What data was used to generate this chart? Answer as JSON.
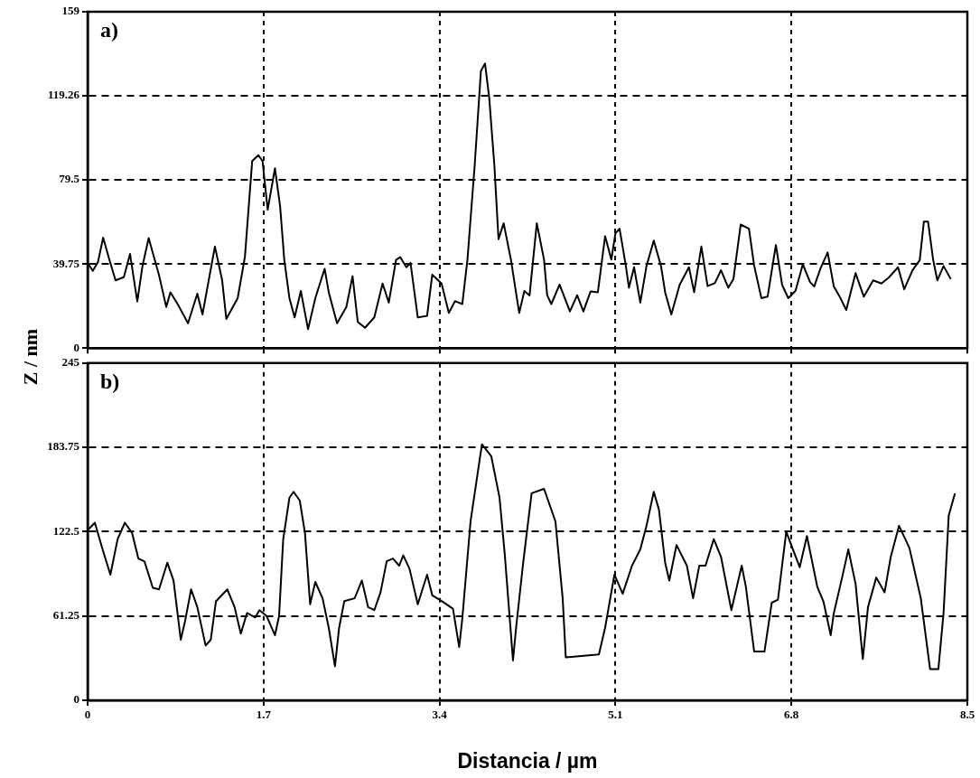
{
  "chart_data": [
    {
      "type": "line",
      "ylabel": "Z / nm",
      "annotations": [
        "a)"
      ],
      "xlim": [
        0,
        8.5
      ],
      "xticks": [
        0,
        1.7,
        3.4,
        5.1,
        6.8,
        8.5
      ],
      "ylim": [
        0,
        159
      ],
      "yticks": [
        0,
        39.75,
        79.5,
        119.26,
        159
      ],
      "grid": true,
      "tick_labels": "y",
      "marker": "none",
      "line_style": "solid",
      "series": [
        {
          "color": "#000000",
          "x": [
            0,
            0.05,
            0.1,
            0.15,
            0.21,
            0.27,
            0.35,
            0.41,
            0.48,
            0.53,
            0.59,
            0.69,
            0.76,
            0.8,
            0.87,
            0.97,
            1.06,
            1.11,
            1.18,
            1.23,
            1.3,
            1.34,
            1.45,
            1.52,
            1.59,
            1.65,
            1.69,
            1.74,
            1.81,
            1.86,
            1.9,
            1.95,
            2.0,
            2.06,
            2.13,
            2.2,
            2.29,
            2.33,
            2.41,
            2.5,
            2.56,
            2.61,
            2.68,
            2.77,
            2.85,
            2.91,
            2.98,
            3.02,
            3.08,
            3.12,
            3.19,
            3.28,
            3.33,
            3.42,
            3.49,
            3.55,
            3.62,
            3.67,
            3.74,
            3.8,
            3.84,
            3.88,
            3.93,
            3.97,
            4.02,
            4.09,
            4.17,
            4.22,
            4.27,
            4.34,
            4.41,
            4.44,
            4.48,
            4.56,
            4.66,
            4.73,
            4.79,
            4.86,
            4.93,
            5.0,
            5.06,
            5.1,
            5.14,
            5.2,
            5.23,
            5.28,
            5.34,
            5.4,
            5.47,
            5.54,
            5.58,
            5.64,
            5.72,
            5.81,
            5.86,
            5.93,
            5.99,
            6.06,
            6.12,
            6.19,
            6.24,
            6.31,
            6.39,
            6.44,
            6.51,
            6.57,
            6.65,
            6.71,
            6.77,
            6.84,
            6.91,
            6.98,
            7.02,
            7.08,
            7.15,
            7.21,
            7.26,
            7.33,
            7.42,
            7.5,
            7.59,
            7.67,
            7.74,
            7.83,
            7.89,
            7.97,
            8.04,
            8.08,
            8.12,
            8.17,
            8.21,
            8.27,
            8.34
          ],
          "values": [
            40.3,
            36.5,
            40.7,
            52.2,
            41.8,
            32,
            33.5,
            44.5,
            22,
            38.8,
            52,
            34.5,
            19.4,
            26.4,
            20.8,
            11.7,
            25.7,
            15.9,
            34.7,
            48,
            32,
            13.8,
            23.6,
            43.2,
            88.4,
            91.2,
            88.4,
            65.4,
            85,
            67,
            41.8,
            23.6,
            14.5,
            27,
            8.9,
            23.6,
            37.5,
            26.4,
            11.7,
            19.4,
            34,
            12.4,
            9.6,
            14.5,
            30.5,
            21.5,
            41.7,
            43,
            38.2,
            40.3,
            14.5,
            15.2,
            34.7,
            30.5,
            16.6,
            22.2,
            20.8,
            41.8,
            86.5,
            131,
            134.5,
            118.5,
            86.5,
            51.5,
            59,
            41.8,
            16.6,
            27,
            24.9,
            59,
            41.8,
            25,
            20.8,
            30,
            17.3,
            25,
            17.3,
            26.8,
            26.4,
            52.9,
            41.8,
            54.3,
            56.4,
            39,
            28.5,
            38.2,
            21.5,
            38.8,
            50.8,
            38.8,
            26.4,
            15.9,
            29.9,
            38.2,
            26.4,
            48,
            29.3,
            30.7,
            36.8,
            28.5,
            32.7,
            58.4,
            56.4,
            39,
            23.6,
            24.3,
            48.7,
            29.9,
            23.6,
            27.1,
            39.6,
            31.2,
            29.1,
            37.5,
            45.2,
            29.1,
            24.9,
            18,
            35.4,
            24.3,
            32,
            30.5,
            33.3,
            38.2,
            27.8,
            36.8,
            41.6,
            59.8,
            59.8,
            41.6,
            32,
            38.8,
            32.6
          ]
        }
      ]
    },
    {
      "type": "line",
      "xlabel": "Distancia / µm",
      "annotations": [
        "b)"
      ],
      "xlim": [
        0,
        8.5
      ],
      "xticks": [
        0,
        1.7,
        3.4,
        5.1,
        6.8,
        8.5
      ],
      "ylim": [
        0,
        245
      ],
      "yticks": [
        0,
        61.25,
        122.5,
        183.75,
        245
      ],
      "grid": true,
      "marker": "none",
      "line_style": "solid",
      "series": [
        {
          "color": "#000000",
          "x": [
            0,
            0.07,
            0.15,
            0.22,
            0.29,
            0.36,
            0.43,
            0.49,
            0.55,
            0.63,
            0.69,
            0.77,
            0.83,
            0.9,
            0.94,
            1.0,
            1.06,
            1.14,
            1.19,
            1.24,
            1.35,
            1.42,
            1.48,
            1.54,
            1.62,
            1.66,
            1.73,
            1.81,
            1.85,
            1.89,
            1.95,
            1.99,
            2.05,
            2.1,
            2.15,
            2.2,
            2.27,
            2.33,
            2.39,
            2.43,
            2.48,
            2.58,
            2.65,
            2.71,
            2.77,
            2.83,
            2.89,
            2.95,
            3.01,
            3.05,
            3.11,
            3.19,
            3.28,
            3.33,
            3.4,
            3.53,
            3.59,
            3.62,
            3.7,
            3.81,
            3.9,
            3.98,
            4.03,
            4.11,
            4.14,
            4.21,
            4.29,
            4.41,
            4.52,
            4.59,
            4.62,
            4.77,
            4.94,
            5.0,
            5.09,
            5.17,
            5.26,
            5.34,
            5.4,
            5.47,
            5.52,
            5.58,
            5.62,
            5.69,
            5.79,
            5.85,
            5.91,
            5.97,
            6.05,
            6.12,
            6.22,
            6.32,
            6.36,
            6.44,
            6.54,
            6.61,
            6.67,
            6.75,
            6.82,
            6.88,
            6.95,
            7.05,
            7.11,
            7.18,
            7.21,
            7.29,
            7.35,
            7.42,
            7.49,
            7.54,
            7.62,
            7.7,
            7.76,
            7.84,
            7.94,
            8.05,
            8.14,
            8.22,
            8.27,
            8.32,
            8.38
          ],
          "values": [
            123.6,
            129,
            108.3,
            91.3,
            117.1,
            129,
            121.5,
            103,
            100.8,
            81.7,
            80.6,
            100,
            87.1,
            44,
            56.9,
            80.6,
            67.7,
            39.8,
            44,
            71.9,
            80.6,
            67.7,
            48.4,
            63.4,
            60.2,
            65.5,
            61.2,
            47.3,
            61.2,
            117.1,
            147.2,
            151.5,
            145.1,
            121.5,
            69.8,
            86,
            74.1,
            52.7,
            24.7,
            52.7,
            72,
            74.1,
            87,
            67.7,
            65.5,
            78.4,
            101,
            103,
            97.8,
            105.3,
            95.6,
            69.8,
            91.3,
            76.3,
            73.1,
            66.6,
            38.7,
            59.1,
            130,
            186,
            177.4,
            147.2,
            106.4,
            29,
            52.7,
            101,
            150.4,
            153.6,
            130,
            74.1,
            31.2,
            32.2,
            33.3,
            52.7,
            91.3,
            77.4,
            97.8,
            109.6,
            126.8,
            151.5,
            138.6,
            100,
            87,
            112.8,
            97.8,
            74.1,
            97.8,
            97.8,
            117.1,
            104.2,
            65.5,
            97.8,
            82.5,
            35.5,
            35.5,
            70.9,
            73.1,
            122.5,
            108.5,
            96.7,
            119.3,
            82.5,
            71.7,
            47.3,
            63.4,
            89.2,
            109.6,
            84.6,
            30,
            67.7,
            89.2,
            78.4,
            104.2,
            126.8,
            110.7,
            74.1,
            22.6,
            22.6,
            63.4,
            134.3,
            150.4
          ]
        }
      ]
    }
  ]
}
